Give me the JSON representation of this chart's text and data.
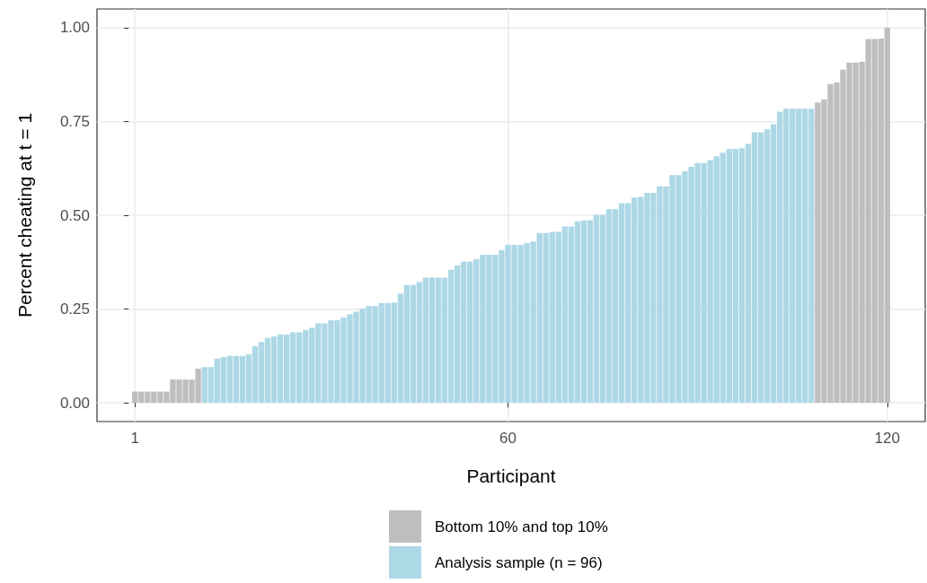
{
  "chart_data": {
    "type": "bar",
    "xlabel": "Participant",
    "ylabel": "Percent cheating at t = 1",
    "xlim": [
      -5,
      126
    ],
    "xticks": [
      1,
      60,
      120
    ],
    "ylim": [
      -0.05,
      1.05
    ],
    "yticks": [
      {
        "value": 0,
        "label": "0.00"
      },
      {
        "value": 0.25,
        "label": "0.25"
      },
      {
        "value": 0.5,
        "label": "0.50"
      },
      {
        "value": 0.75,
        "label": "0.75"
      },
      {
        "value": 1,
        "label": "1.00"
      }
    ],
    "grid": true,
    "legend": "bottom",
    "series": [
      {
        "name": "Bottom 10% and top 10%",
        "color": "#bebebe",
        "x": [
          1,
          2,
          3,
          4,
          5,
          6,
          7,
          8,
          9,
          10,
          11,
          109,
          110,
          111,
          112,
          113,
          114,
          115,
          116,
          117,
          118,
          119,
          120
        ],
        "values": [
          0.03,
          0.03,
          0.03,
          0.03,
          0.03,
          0.03,
          0.062,
          0.062,
          0.062,
          0.062,
          0.091,
          0.801,
          0.809,
          0.85,
          0.854,
          0.888,
          0.907,
          0.907,
          0.909,
          0.97,
          0.97,
          0.971,
          1.0
        ]
      },
      {
        "name": "Analysis sample (n = 96)",
        "color": "#add8e6",
        "x": [
          12,
          13,
          14,
          15,
          16,
          17,
          18,
          19,
          20,
          21,
          22,
          23,
          24,
          25,
          26,
          27,
          28,
          29,
          30,
          31,
          32,
          33,
          34,
          35,
          36,
          37,
          38,
          39,
          40,
          41,
          42,
          43,
          44,
          45,
          46,
          47,
          48,
          49,
          50,
          51,
          52,
          53,
          54,
          55,
          56,
          57,
          58,
          59,
          60,
          61,
          62,
          63,
          64,
          65,
          66,
          67,
          68,
          69,
          70,
          71,
          72,
          73,
          74,
          75,
          76,
          77,
          78,
          79,
          80,
          81,
          82,
          83,
          84,
          85,
          86,
          87,
          88,
          89,
          90,
          91,
          92,
          93,
          94,
          95,
          96,
          97,
          98,
          99,
          100,
          101,
          102,
          103,
          104,
          105,
          106,
          107,
          108
        ],
        "values": [
          0.095,
          0.095,
          0.118,
          0.122,
          0.125,
          0.125,
          0.125,
          0.129,
          0.151,
          0.162,
          0.173,
          0.177,
          0.182,
          0.182,
          0.188,
          0.188,
          0.194,
          0.2,
          0.212,
          0.212,
          0.22,
          0.22,
          0.227,
          0.236,
          0.243,
          0.251,
          0.258,
          0.258,
          0.266,
          0.266,
          0.267,
          0.291,
          0.314,
          0.314,
          0.322,
          0.334,
          0.334,
          0.334,
          0.334,
          0.355,
          0.366,
          0.376,
          0.376,
          0.383,
          0.395,
          0.395,
          0.395,
          0.407,
          0.421,
          0.421,
          0.421,
          0.426,
          0.43,
          0.453,
          0.453,
          0.456,
          0.456,
          0.47,
          0.47,
          0.484,
          0.486,
          0.487,
          0.501,
          0.501,
          0.516,
          0.516,
          0.532,
          0.532,
          0.547,
          0.549,
          0.56,
          0.56,
          0.577,
          0.577,
          0.607,
          0.607,
          0.618,
          0.629,
          0.639,
          0.639,
          0.647,
          0.657,
          0.667,
          0.677,
          0.677,
          0.679,
          0.69,
          0.721,
          0.721,
          0.729,
          0.743,
          0.776,
          0.784,
          0.784,
          0.784,
          0.784,
          0.784
        ]
      }
    ]
  }
}
